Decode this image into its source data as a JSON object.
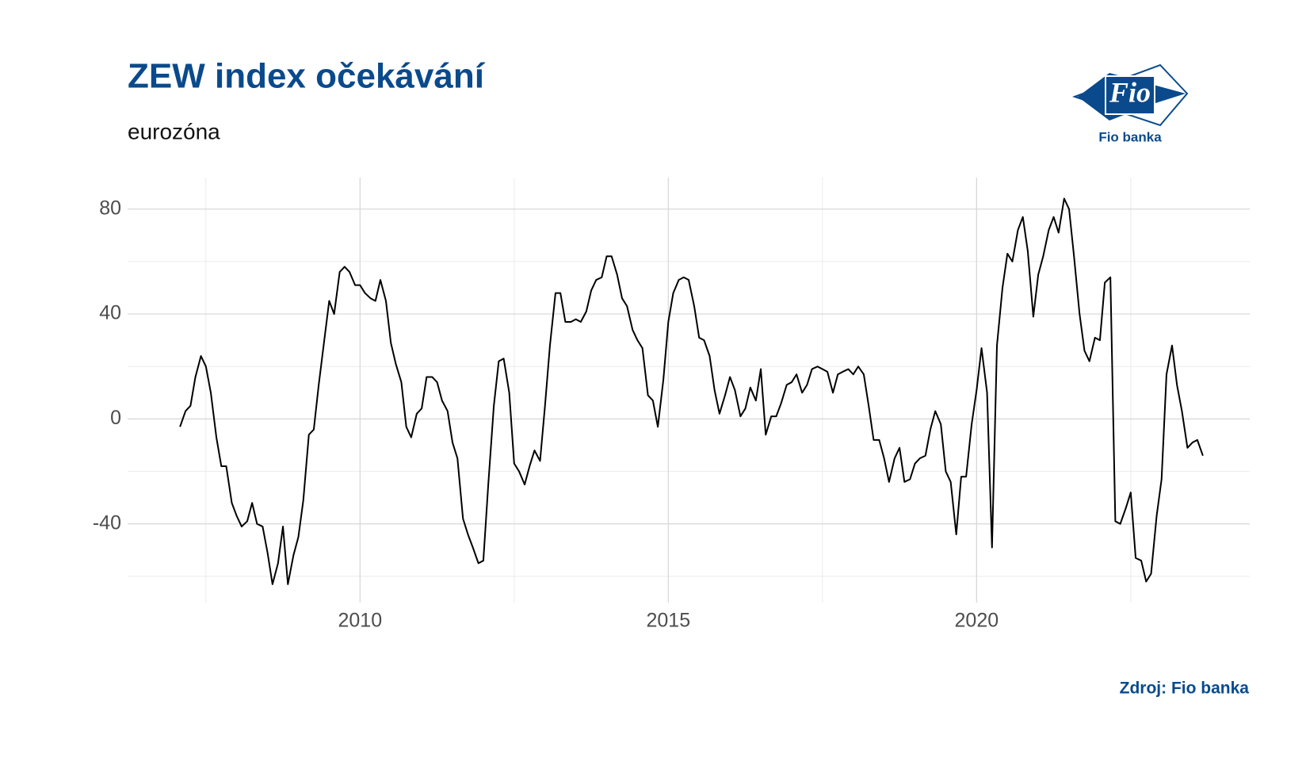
{
  "chart_data": {
    "type": "line",
    "title": "ZEW index očekávání",
    "subtitle": "eurozóna",
    "source": "Zdroj: Fio banka",
    "x": [
      2007.08,
      2007.17,
      2007.25,
      2007.33,
      2007.42,
      2007.5,
      2007.58,
      2007.67,
      2007.75,
      2007.83,
      2007.92,
      2008.0,
      2008.08,
      2008.17,
      2008.25,
      2008.33,
      2008.42,
      2008.5,
      2008.58,
      2008.67,
      2008.75,
      2008.83,
      2008.92,
      2009.0,
      2009.08,
      2009.17,
      2009.25,
      2009.33,
      2009.42,
      2009.5,
      2009.58,
      2009.67,
      2009.75,
      2009.83,
      2009.92,
      2010.0,
      2010.08,
      2010.17,
      2010.25,
      2010.33,
      2010.42,
      2010.5,
      2010.58,
      2010.67,
      2010.75,
      2010.83,
      2010.92,
      2011.0,
      2011.08,
      2011.17,
      2011.25,
      2011.33,
      2011.42,
      2011.5,
      2011.58,
      2011.67,
      2011.75,
      2011.83,
      2011.92,
      2012.0,
      2012.08,
      2012.17,
      2012.25,
      2012.33,
      2012.42,
      2012.5,
      2012.58,
      2012.67,
      2012.75,
      2012.83,
      2012.92,
      2013.0,
      2013.08,
      2013.17,
      2013.25,
      2013.33,
      2013.42,
      2013.5,
      2013.58,
      2013.67,
      2013.75,
      2013.83,
      2013.92,
      2014.0,
      2014.08,
      2014.17,
      2014.25,
      2014.33,
      2014.42,
      2014.5,
      2014.58,
      2014.67,
      2014.75,
      2014.83,
      2014.92,
      2015.0,
      2015.08,
      2015.17,
      2015.25,
      2015.33,
      2015.42,
      2015.5,
      2015.58,
      2015.67,
      2015.75,
      2015.83,
      2015.92,
      2016.0,
      2016.08,
      2016.17,
      2016.25,
      2016.33,
      2016.42,
      2016.5,
      2016.58,
      2016.67,
      2016.75,
      2016.83,
      2016.92,
      2017.0,
      2017.08,
      2017.17,
      2017.25,
      2017.33,
      2017.42,
      2017.5,
      2017.58,
      2017.67,
      2017.75,
      2017.83,
      2017.92,
      2018.0,
      2018.08,
      2018.17,
      2018.25,
      2018.33,
      2018.42,
      2018.5,
      2018.58,
      2018.67,
      2018.75,
      2018.83,
      2018.92,
      2019.0,
      2019.08,
      2019.17,
      2019.25,
      2019.33,
      2019.42,
      2019.5,
      2019.58,
      2019.67,
      2019.75,
      2019.83,
      2019.92,
      2020.0,
      2020.08,
      2020.17,
      2020.25,
      2020.33,
      2020.42,
      2020.5,
      2020.58,
      2020.67,
      2020.75,
      2020.83,
      2020.92,
      2021.0,
      2021.08,
      2021.17,
      2021.25,
      2021.33,
      2021.42,
      2021.5,
      2021.58,
      2021.67,
      2021.75,
      2021.83,
      2021.92,
      2022.0,
      2022.08,
      2022.17,
      2022.25,
      2022.33,
      2022.42,
      2022.5,
      2022.58,
      2022.67,
      2022.75,
      2022.83,
      2022.92,
      2023.0,
      2023.08,
      2023.17,
      2023.25,
      2023.33,
      2023.42,
      2023.5,
      2023.58,
      2023.67
    ],
    "values": [
      -3,
      3,
      5,
      16,
      24,
      20,
      10,
      -7,
      -18,
      -18,
      -32,
      -37,
      -41,
      -39,
      -32,
      -40,
      -41,
      -51,
      -63,
      -55,
      -41,
      -63,
      -52,
      -45,
      -31,
      -6,
      -4,
      13,
      30,
      45,
      40,
      56,
      58,
      56,
      51,
      51,
      48,
      46,
      45,
      53,
      45,
      29,
      21,
      14,
      -3,
      -7,
      2,
      4,
      16,
      16,
      14,
      7,
      3,
      -9,
      -15,
      -38,
      -44,
      -49,
      -55,
      -54,
      -25,
      5,
      22,
      23,
      10,
      -17,
      -20,
      -25,
      -18,
      -12,
      -16,
      5,
      28,
      48,
      48,
      37,
      37,
      38,
      37,
      41,
      49,
      53,
      54,
      62,
      62,
      55,
      46,
      43,
      34,
      30,
      27,
      9,
      7,
      -3,
      15,
      37,
      48,
      53,
      54,
      53,
      43,
      31,
      30,
      24,
      11,
      2,
      9,
      16,
      11,
      1,
      4,
      12,
      7,
      19,
      -6,
      1,
      1,
      6,
      13,
      14,
      17,
      10,
      13,
      19,
      20,
      19,
      18,
      10,
      17,
      18,
      19,
      17,
      20,
      17,
      5,
      -8,
      -8,
      -15,
      -24,
      -15,
      -11,
      -24,
      -23,
      -17,
      -15,
      -14,
      -4,
      3,
      -2,
      -20,
      -24,
      -44,
      -22,
      -22,
      -2,
      11,
      27,
      10,
      -49,
      28,
      50,
      63,
      60,
      72,
      77,
      64,
      39,
      55,
      62,
      72,
      77,
      71,
      84,
      80,
      62,
      40,
      26,
      22,
      31,
      30,
      52,
      54,
      -39,
      -40,
      -34,
      -28,
      -53,
      -54,
      -62,
      -59,
      -37,
      -23,
      17,
      28,
      13,
      3,
      -11,
      -9,
      -8,
      -14
    ],
    "color": "#000000",
    "xlim": [
      2006.23,
      2024.43
    ],
    "xticks": [
      2010,
      2015,
      2020
    ],
    "ylim": [
      -70,
      92
    ],
    "yticks": [
      -40,
      0,
      40,
      80
    ],
    "grid": true
  },
  "logo": {
    "mark": "Fio",
    "caption": "Fio banka"
  }
}
